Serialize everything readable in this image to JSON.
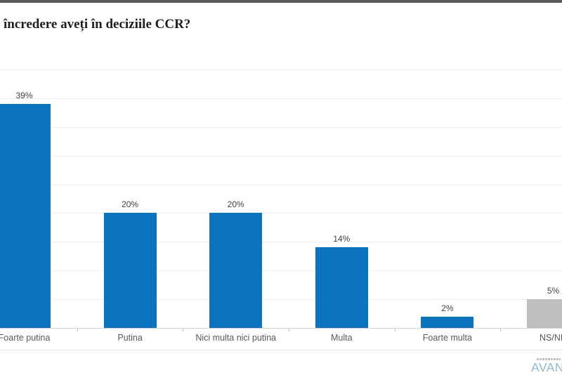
{
  "page": {
    "title": "încredere aveți în deciziile CCR?"
  },
  "chart_data": {
    "type": "bar",
    "title": "încredere aveți în deciziile CCR?",
    "categories": [
      "Foarte putina",
      "Putina",
      "Nici multa nici putina",
      "Multa",
      "Foarte multa",
      "NS/NR"
    ],
    "values": [
      39,
      20,
      20,
      14,
      2,
      5
    ],
    "value_labels": [
      "39%",
      "20%",
      "20%",
      "14%",
      "2%",
      "5%"
    ],
    "bar_colors": [
      "#0c74bf",
      "#0c74bf",
      "#0c74bf",
      "#0c74bf",
      "#0c74bf",
      "#bfbfbf"
    ],
    "xlabel": "",
    "ylabel": "",
    "ylim": [
      0,
      45
    ],
    "gridline_interval": 5,
    "grid": true,
    "legend": false,
    "notes": "first bar and title clipped at left edge; NS/NR bar and logo clipped at right edge"
  },
  "branding": {
    "logo_text": "AVAN",
    "logo_color": "#8fbacf"
  },
  "colors": {
    "accent_blue": "#0c74bf",
    "neutral_gray": "#bfbfbf",
    "gridline": "#ececec",
    "axis_line": "#d6d6d6",
    "value_label": "#3f3f3f",
    "category_label": "#595959",
    "top_strip": "#5b5b5b"
  }
}
